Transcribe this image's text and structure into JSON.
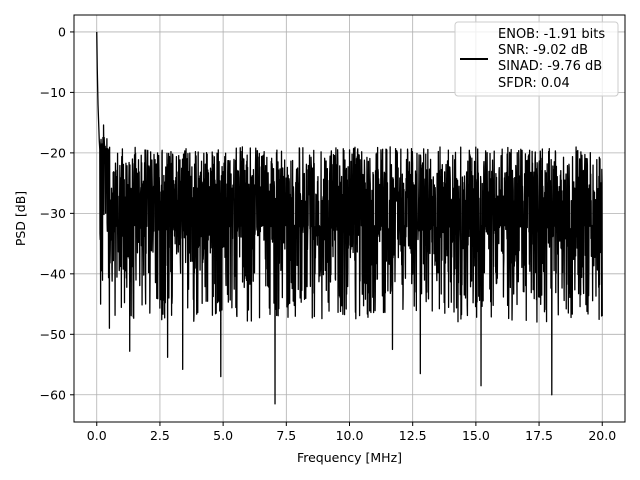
{
  "chart_data": {
    "type": "line",
    "xlabel": "Frequency [MHz]",
    "ylabel": "PSD [dB]",
    "xlim": [
      -0.9,
      20.9
    ],
    "ylim": [
      -64.5,
      2.8
    ],
    "xticks": [
      0.0,
      2.5,
      5.0,
      7.5,
      10.0,
      12.5,
      15.0,
      17.5,
      20.0
    ],
    "xtick_labels": [
      "0.0",
      "2.5",
      "5.0",
      "7.5",
      "10.0",
      "12.5",
      "15.0",
      "17.5",
      "20.0"
    ],
    "yticks": [
      0,
      -10,
      -20,
      -30,
      -40,
      -50,
      -60
    ],
    "ytick_labels": [
      "0",
      "−10",
      "−20",
      "−30",
      "−40",
      "−50",
      "−60"
    ],
    "grid": true,
    "legend_position": "top-right",
    "series": [
      {
        "color": "#000000",
        "legend_lines": [
          "ENOB: -1.91 bits",
          "SNR: -9.02 dB",
          "SINAD: -9.76 dB",
          "SFDR: 0.04"
        ],
        "x_range": [
          0.0,
          20.0
        ],
        "noise_floor_mean": -30,
        "key_points": [
          {
            "x": 0.0,
            "y": 0.0
          },
          {
            "x": 0.02,
            "y": -6.0
          },
          {
            "x": 0.05,
            "y": -12.0
          },
          {
            "x": 0.1,
            "y": -18.0
          },
          {
            "x": 0.15,
            "y": -45.0
          },
          {
            "x": 0.3,
            "y": -18.5
          },
          {
            "x": 0.5,
            "y": -49.0
          },
          {
            "x": 1.3,
            "y": -52.8
          },
          {
            "x": 2.4,
            "y": -20.0
          },
          {
            "x": 2.8,
            "y": -53.8
          },
          {
            "x": 3.0,
            "y": -20.2
          },
          {
            "x": 3.4,
            "y": -55.8
          },
          {
            "x": 3.9,
            "y": -19.8
          },
          {
            "x": 4.9,
            "y": -57.0
          },
          {
            "x": 7.05,
            "y": -61.5
          },
          {
            "x": 10.0,
            "y": -19.5
          },
          {
            "x": 11.7,
            "y": -52.5
          },
          {
            "x": 12.8,
            "y": -56.5
          },
          {
            "x": 15.2,
            "y": -58.5
          },
          {
            "x": 17.9,
            "y": -19.3
          },
          {
            "x": 18.0,
            "y": -60.0
          },
          {
            "x": 19.1,
            "y": -21.0
          },
          {
            "x": 20.0,
            "y": -47.0
          }
        ]
      }
    ]
  }
}
